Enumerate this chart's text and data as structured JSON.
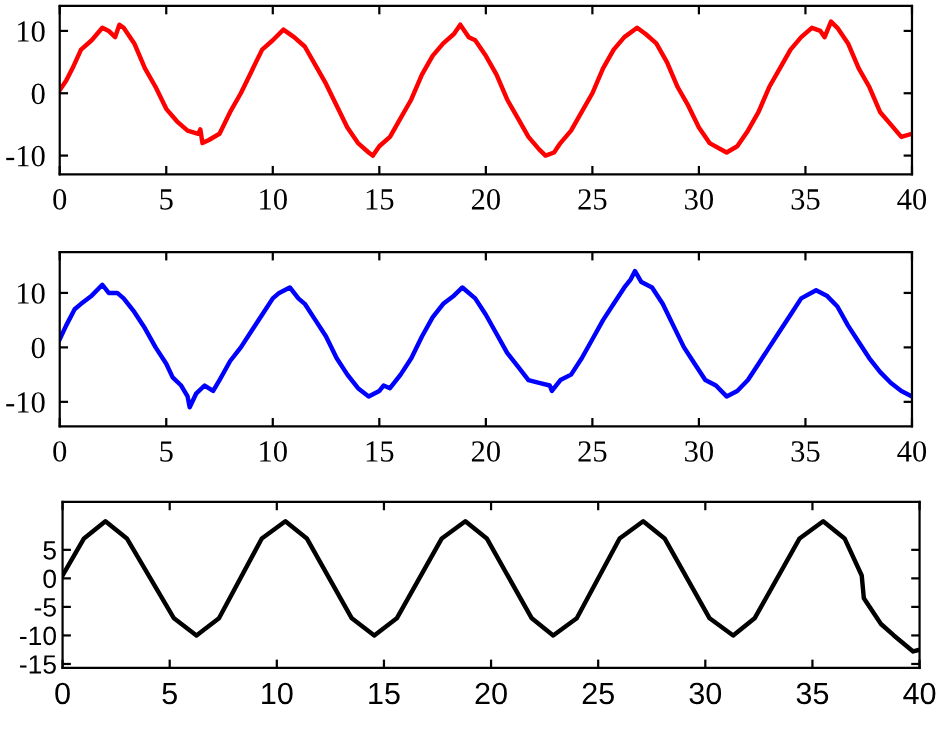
{
  "chart_data": [
    {
      "type": "line",
      "x": [
        0,
        0.3,
        0.6,
        1,
        1.5,
        2,
        2.3,
        2.6,
        2.8,
        3,
        3.5,
        4,
        4.5,
        5,
        5.5,
        6,
        6.5,
        6.6,
        6.7,
        7,
        7.5,
        8,
        8.5,
        9,
        9.5,
        10,
        10.5,
        11,
        11.5,
        12,
        12.5,
        13,
        13.5,
        14,
        14.5,
        14.7,
        15,
        15.5,
        16,
        16.5,
        17,
        17.5,
        18,
        18.5,
        18.8,
        19.2,
        19.5,
        20,
        20.5,
        21,
        21.5,
        22,
        22.5,
        22.8,
        23.2,
        23.5,
        24,
        24.5,
        25,
        25.5,
        26,
        26.5,
        27.1,
        27.5,
        28,
        28.5,
        29,
        29.5,
        30,
        30.5,
        31.3,
        31.8,
        32.3,
        32.8,
        33.3,
        33.8,
        34.3,
        34.8,
        35.3,
        35.7,
        35.9,
        36.2,
        36.5,
        37,
        37.5,
        38,
        38.5,
        39,
        39.5,
        40
      ],
      "series": [
        {
          "color": "#ff0000",
          "values": [
            0.5,
            2,
            4,
            7,
            8.5,
            10.5,
            10,
            9,
            11,
            10.5,
            8,
            4,
            1,
            -2.5,
            -4.5,
            -6,
            -6.5,
            -5.8,
            -8,
            -7.5,
            -6.5,
            -3,
            0,
            3.5,
            7,
            8.5,
            10.2,
            9,
            7.5,
            4.5,
            1.5,
            -2,
            -5.5,
            -8,
            -9.5,
            -10,
            -8.5,
            -7,
            -4,
            -1,
            3,
            6,
            8,
            9.5,
            11,
            9,
            8.5,
            6,
            3,
            -1,
            -4,
            -7,
            -9,
            -10,
            -9.5,
            -8,
            -6,
            -3,
            0,
            4,
            7,
            9,
            10.5,
            9.5,
            8,
            5,
            1,
            -2,
            -5.5,
            -8,
            -9.5,
            -8.5,
            -6,
            -3,
            1,
            4,
            7,
            9,
            10.5,
            10,
            9,
            11.5,
            10.5,
            8,
            4,
            1,
            -3,
            -5,
            -7,
            -6.5
          ]
        }
      ],
      "xlim": [
        0,
        40
      ],
      "xticks": [
        0,
        5,
        10,
        15,
        20,
        25,
        30,
        35,
        40
      ],
      "ylim": [
        -13,
        14
      ],
      "yticks": [
        -10,
        0,
        10
      ],
      "grid": false,
      "legend": false
    },
    {
      "type": "line",
      "x": [
        0,
        0.3,
        0.7,
        1,
        1.5,
        2,
        2.3,
        2.7,
        3,
        3.5,
        4,
        4.5,
        5,
        5.3,
        5.7,
        6,
        6.1,
        6.4,
        6.8,
        7.2,
        7.5,
        8,
        8.5,
        9,
        9.5,
        10,
        10.3,
        10.8,
        11.2,
        11.5,
        12,
        12.5,
        13,
        13.5,
        14,
        14.5,
        15,
        15.2,
        15.5,
        16,
        16.5,
        17,
        17.5,
        18,
        18.5,
        18.9,
        19.5,
        20,
        20.5,
        21,
        21.5,
        22,
        22.5,
        23,
        23.1,
        23.5,
        24,
        24.5,
        25,
        25.5,
        26,
        26.5,
        26.8,
        27,
        27.3,
        27.8,
        28.3,
        28.8,
        29.3,
        29.8,
        30.3,
        30.8,
        31.3,
        31.8,
        32.3,
        32.8,
        33.3,
        33.8,
        34.3,
        34.8,
        35.5,
        36,
        36.5,
        37,
        37.5,
        38,
        38.5,
        39,
        39.5,
        40
      ],
      "series": [
        {
          "color": "#0000ff",
          "values": [
            1.5,
            4,
            7,
            8,
            9.5,
            11.5,
            10,
            10,
            9,
            6.5,
            3.5,
            0,
            -3,
            -5.5,
            -7,
            -9,
            -11,
            -8.5,
            -7,
            -8,
            -6,
            -2.5,
            0,
            3,
            6,
            9,
            10,
            11,
            9,
            8,
            5,
            2,
            -2,
            -5,
            -7.5,
            -9,
            -8,
            -7,
            -7.5,
            -5,
            -2,
            2,
            5.5,
            8,
            9.5,
            11,
            9,
            6,
            2.5,
            -1,
            -3.5,
            -6,
            -6.5,
            -7,
            -8,
            -6,
            -5,
            -2,
            1.5,
            5,
            8,
            11,
            12.5,
            14,
            12,
            11,
            8,
            4,
            0,
            -3,
            -6,
            -7,
            -9,
            -8,
            -6,
            -3,
            0,
            3,
            6,
            9,
            10.5,
            9.5,
            7.5,
            4,
            1,
            -2,
            -4.5,
            -6.5,
            -8,
            -9
          ]
        }
      ],
      "xlim": [
        0,
        40
      ],
      "xticks": [
        0,
        5,
        10,
        15,
        20,
        25,
        30,
        35,
        40
      ],
      "ylim": [
        -14.5,
        17.5
      ],
      "yticks": [
        -10,
        0,
        10
      ],
      "grid": false,
      "legend": false
    },
    {
      "type": "line",
      "x": [
        0,
        1,
        2,
        3,
        5.2,
        6.25,
        7.3,
        9.3,
        10.4,
        11.4,
        13.5,
        14.55,
        15.6,
        17.7,
        18.8,
        19.8,
        21.9,
        22.9,
        24,
        26,
        27.1,
        28.1,
        30.2,
        31.3,
        32.3,
        34.4,
        35.5,
        36.5,
        37.3,
        37.4,
        38.2,
        38.8,
        39.7,
        40
      ],
      "series": [
        {
          "color": "#000000",
          "values": [
            0.5,
            7,
            10,
            7,
            -7,
            -10,
            -7,
            7,
            10,
            7,
            -7,
            -10,
            -7,
            7,
            10,
            7,
            -7,
            -10,
            -7,
            7,
            10,
            7,
            -7,
            -10,
            -7,
            7,
            10,
            7,
            0.5,
            -3.5,
            -8,
            -10,
            -12.8,
            -12.5
          ]
        }
      ],
      "xlim": [
        0,
        40
      ],
      "xticks": [
        0,
        5,
        10,
        15,
        20,
        25,
        30,
        35,
        40
      ],
      "ylim": [
        -15.7,
        13.4
      ],
      "yticks": [
        -15,
        -10,
        -5,
        0,
        5
      ],
      "grid": false,
      "legend": false
    }
  ]
}
